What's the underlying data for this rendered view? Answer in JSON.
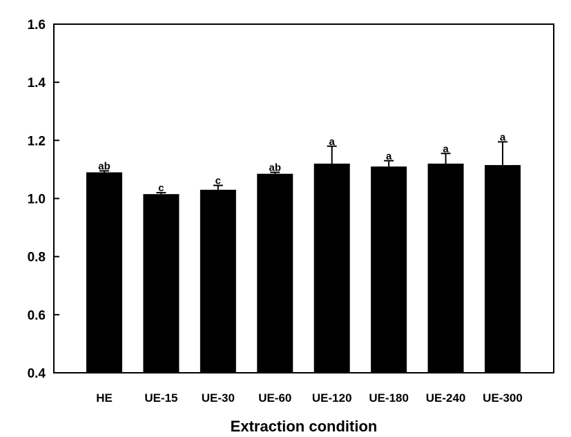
{
  "chart_data": {
    "type": "bar",
    "xlabel": "Extraction condition",
    "ylabel": "",
    "ylim": [
      0.4,
      1.6
    ],
    "yticks": [
      "0.4",
      "0.6",
      "0.8",
      "1.0",
      "1.2",
      "1.4",
      "1.6"
    ],
    "grid": false,
    "legend": "none",
    "categories": [
      "HE",
      "UE-15",
      "UE-30",
      "UE-60",
      "UE-120",
      "UE-180",
      "UE-240",
      "UE-300"
    ],
    "values": [
      1.09,
      1.015,
      1.03,
      1.085,
      1.12,
      1.11,
      1.12,
      1.115
    ],
    "errors": [
      0.005,
      0.005,
      0.015,
      0.005,
      0.06,
      0.02,
      0.035,
      0.08
    ],
    "significance": [
      "ab",
      "c",
      "c",
      "ab",
      "a",
      "a",
      "a",
      "a"
    ],
    "bar_color": "#000000"
  }
}
